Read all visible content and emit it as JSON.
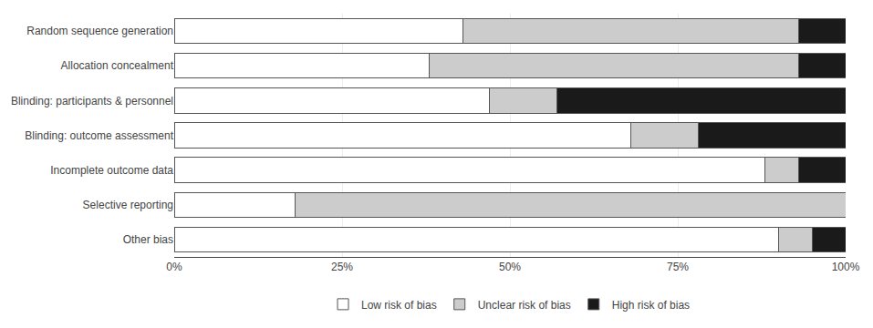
{
  "chart_data": {
    "type": "bar",
    "orientation": "horizontal",
    "stacked": true,
    "categories": [
      "Random sequence generation",
      "Allocation concealment",
      "Blinding: participants & personnel",
      "Blinding: outcome assessment",
      "Incomplete outcome data",
      "Selective reporting",
      "Other bias"
    ],
    "series": [
      {
        "name": "Low risk of bias",
        "color": "#ffffff",
        "values": [
          43,
          38,
          47,
          68,
          88,
          18,
          90
        ]
      },
      {
        "name": "Unclear risk of bias",
        "color": "#cccccc",
        "values": [
          50,
          55,
          10,
          10,
          5,
          82,
          5
        ]
      },
      {
        "name": "High risk of bias",
        "color": "#1a1a1a",
        "values": [
          7,
          7,
          43,
          22,
          7,
          0,
          5
        ]
      }
    ],
    "xlim": [
      0,
      100
    ],
    "xticks": [
      {
        "value": 0,
        "label": "0%"
      },
      {
        "value": 25,
        "label": "25%"
      },
      {
        "value": 50,
        "label": "50%"
      },
      {
        "value": 75,
        "label": "75%"
      },
      {
        "value": 100,
        "label": "100%"
      }
    ],
    "grid": true,
    "legend": "bottom"
  }
}
